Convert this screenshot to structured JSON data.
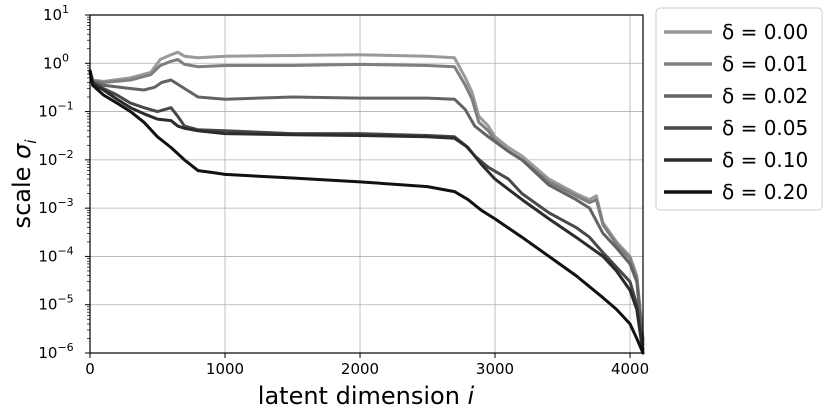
{
  "chart_data": {
    "type": "line",
    "xlabel": "latent dimension",
    "xlabel_var": "i",
    "ylabel": "scale",
    "ylabel_var": "σ",
    "ylabel_sub": "i",
    "xlim": [
      0,
      4096
    ],
    "ylim": [
      1e-06,
      10
    ],
    "yscale": "log",
    "grid": true,
    "legend_position": "outside-right",
    "x_ticks": [
      0,
      1000,
      2000,
      3000,
      4000
    ],
    "x_tick_labels": [
      "0",
      "1000",
      "2000",
      "3000",
      "4000"
    ],
    "y_ticks": [
      1e-06,
      1e-05,
      0.0001,
      0.001,
      0.01,
      0.1,
      1,
      10
    ],
    "y_tick_bases": [
      "10",
      "10",
      "10",
      "10",
      "10",
      "10",
      "10",
      "10"
    ],
    "y_tick_exponents": [
      "−6",
      "−5",
      "−4",
      "−3",
      "−2",
      "−1",
      "0",
      "1"
    ],
    "series": [
      {
        "name": "δ = 0.00",
        "color": "#9a9a9a",
        "x": [
          0,
          20,
          100,
          300,
          450,
          520,
          600,
          650,
          700,
          800,
          1000,
          1500,
          2000,
          2500,
          2700,
          2780,
          2830,
          2880,
          2950,
          3000,
          3100,
          3200,
          3400,
          3600,
          3700,
          3750,
          3800,
          3900,
          4000,
          4050,
          4096
        ],
        "y": [
          0.7,
          0.45,
          0.42,
          0.5,
          0.65,
          1.2,
          1.5,
          1.7,
          1.4,
          1.3,
          1.4,
          1.45,
          1.5,
          1.4,
          1.3,
          0.5,
          0.25,
          0.08,
          0.05,
          0.03,
          0.018,
          0.012,
          0.004,
          0.002,
          0.0015,
          0.0018,
          0.0005,
          0.0002,
          0.0001,
          4e-05,
          2e-06
        ]
      },
      {
        "name": "δ = 0.01",
        "color": "#7f7f7f",
        "x": [
          0,
          20,
          100,
          300,
          450,
          520,
          600,
          650,
          700,
          800,
          1000,
          1500,
          2000,
          2500,
          2700,
          2780,
          2830,
          2880,
          2950,
          3000,
          3100,
          3200,
          3400,
          3600,
          3700,
          3750,
          3800,
          3900,
          4000,
          4050,
          4096
        ],
        "y": [
          0.7,
          0.43,
          0.4,
          0.45,
          0.58,
          0.9,
          1.1,
          1.2,
          0.95,
          0.85,
          0.9,
          0.9,
          0.95,
          0.9,
          0.85,
          0.35,
          0.18,
          0.06,
          0.04,
          0.025,
          0.015,
          0.01,
          0.0035,
          0.0018,
          0.0013,
          0.0015,
          0.00045,
          0.00018,
          9e-05,
          3.5e-05,
          1.8e-06
        ]
      },
      {
        "name": "δ = 0.02",
        "color": "#636363",
        "x": [
          0,
          20,
          100,
          300,
          400,
          480,
          530,
          600,
          800,
          1000,
          1500,
          2000,
          2500,
          2700,
          2780,
          2850,
          2950,
          3100,
          3200,
          3400,
          3600,
          3700,
          3800,
          3900,
          4000,
          4050,
          4096
        ],
        "y": [
          0.7,
          0.42,
          0.35,
          0.3,
          0.28,
          0.32,
          0.4,
          0.45,
          0.2,
          0.18,
          0.2,
          0.19,
          0.19,
          0.18,
          0.11,
          0.05,
          0.03,
          0.015,
          0.01,
          0.003,
          0.0015,
          0.001,
          0.0003,
          0.00015,
          7e-05,
          3e-05,
          1.5e-06
        ]
      },
      {
        "name": "δ = 0.05",
        "color": "#484848",
        "x": [
          0,
          20,
          100,
          200,
          300,
          400,
          500,
          600,
          650,
          700,
          800,
          1000,
          1500,
          2000,
          2500,
          2700,
          2780,
          2850,
          2950,
          3100,
          3200,
          3400,
          3600,
          3700,
          3800,
          3900,
          4000,
          4050,
          4096
        ],
        "y": [
          0.7,
          0.4,
          0.3,
          0.22,
          0.15,
          0.12,
          0.1,
          0.12,
          0.08,
          0.05,
          0.042,
          0.04,
          0.035,
          0.035,
          0.032,
          0.03,
          0.02,
          0.012,
          0.007,
          0.004,
          0.002,
          0.0008,
          0.0004,
          0.00025,
          0.00012,
          6e-05,
          3e-05,
          1e-05,
          1.2e-06
        ]
      },
      {
        "name": "δ = 0.10",
        "color": "#2c2c2c",
        "x": [
          0,
          20,
          100,
          200,
          300,
          400,
          500,
          600,
          650,
          700,
          800,
          1000,
          1500,
          2000,
          2500,
          2700,
          2800,
          2900,
          3000,
          3200,
          3400,
          3600,
          3800,
          3900,
          4000,
          4050,
          4096
        ],
        "y": [
          0.7,
          0.38,
          0.28,
          0.18,
          0.12,
          0.09,
          0.07,
          0.065,
          0.05,
          0.045,
          0.04,
          0.035,
          0.033,
          0.032,
          0.03,
          0.028,
          0.018,
          0.008,
          0.004,
          0.0015,
          0.0006,
          0.00025,
          0.0001,
          5e-05,
          2e-05,
          8e-06,
          1e-06
        ]
      },
      {
        "name": "δ = 0.20",
        "color": "#111111",
        "x": [
          0,
          20,
          100,
          200,
          300,
          400,
          500,
          600,
          700,
          800,
          900,
          1000,
          1500,
          2000,
          2500,
          2700,
          2800,
          2900,
          3000,
          3200,
          3400,
          3600,
          3800,
          3900,
          4000,
          4050,
          4096
        ],
        "y": [
          0.7,
          0.35,
          0.22,
          0.15,
          0.1,
          0.06,
          0.03,
          0.018,
          0.01,
          0.006,
          0.0055,
          0.005,
          0.0042,
          0.0035,
          0.0028,
          0.0022,
          0.0015,
          0.0009,
          0.0006,
          0.00025,
          0.0001,
          4e-05,
          1.4e-05,
          8e-06,
          4e-06,
          2e-06,
          8e-07
        ]
      }
    ]
  }
}
